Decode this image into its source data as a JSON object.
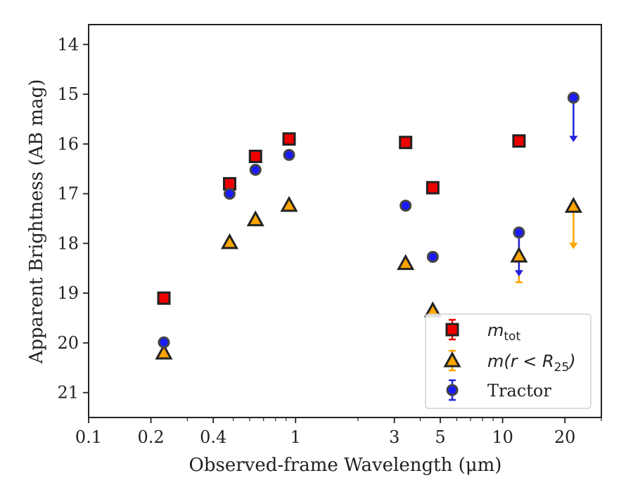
{
  "chart_data": {
    "type": "scatter",
    "xscale": "log",
    "yaxis_inverted": true,
    "xlabel": "Observed-frame Wavelength (μm)",
    "ylabel": "Apparent Brightness (AB mag)",
    "xlim": [
      0.1,
      30
    ],
    "ylim": [
      21.5,
      13.6
    ],
    "x_ticks": [
      {
        "value": 0.1,
        "label": "0.1"
      },
      {
        "value": 0.2,
        "label": "0.2"
      },
      {
        "value": 0.4,
        "label": "0.4"
      },
      {
        "value": 1,
        "label": "1"
      },
      {
        "value": 3,
        "label": "3"
      },
      {
        "value": 5,
        "label": "5"
      },
      {
        "value": 10,
        "label": "10"
      },
      {
        "value": 20,
        "label": "20"
      }
    ],
    "y_ticks": [
      14,
      15,
      16,
      17,
      18,
      19,
      20,
      21
    ],
    "grid": false,
    "legend_position": "lower-right",
    "series": [
      {
        "name": "m_tot",
        "legend": {
          "base": "m",
          "sub": "tot",
          "suffix": ""
        },
        "marker": "square",
        "color": "#ee0000",
        "errcolor": "#ee0000",
        "points": [
          {
            "x": 0.231,
            "y": 19.1
          },
          {
            "x": 0.48,
            "y": 16.8
          },
          {
            "x": 0.64,
            "y": 16.25
          },
          {
            "x": 0.93,
            "y": 15.9
          },
          {
            "x": 3.4,
            "y": 15.97
          },
          {
            "x": 4.6,
            "y": 16.88
          },
          {
            "x": 12.0,
            "y": 15.94
          }
        ]
      },
      {
        "name": "m(r<R_25)",
        "legend": {
          "base": "m(r",
          "mid": " < R",
          "sub": "25",
          "suffix": ")"
        },
        "marker": "triangle",
        "color": "#ffa500",
        "errcolor": "#ffa500",
        "points": [
          {
            "x": 0.231,
            "y": 20.2
          },
          {
            "x": 0.48,
            "y": 17.98
          },
          {
            "x": 0.64,
            "y": 17.52
          },
          {
            "x": 0.93,
            "y": 17.23
          },
          {
            "x": 3.4,
            "y": 18.4
          },
          {
            "x": 4.6,
            "y": 19.35
          },
          {
            "x": 12.0,
            "y": 18.25
          },
          {
            "x": 22.0,
            "y": 17.25,
            "upper_limit_to": 18.1
          },
          {
            "x": 12.0,
            "y": 18.3,
            "err_only": true,
            "err_low": 18.78,
            "err_high": 17.75
          }
        ]
      },
      {
        "name": "Tractor",
        "legend": {
          "base": "Tractor",
          "plain": true
        },
        "marker": "circle",
        "color": "#1a1aff",
        "errcolor": "#2222dd",
        "points": [
          {
            "x": 0.231,
            "y": 19.99
          },
          {
            "x": 0.48,
            "y": 17.0
          },
          {
            "x": 0.64,
            "y": 16.52
          },
          {
            "x": 0.93,
            "y": 16.22
          },
          {
            "x": 3.4,
            "y": 17.24
          },
          {
            "x": 4.6,
            "y": 18.27
          },
          {
            "x": 12.0,
            "y": 17.78,
            "upper_limit_to": 18.65
          },
          {
            "x": 22.0,
            "y": 15.07,
            "upper_limit_to": 15.95
          }
        ]
      }
    ]
  }
}
